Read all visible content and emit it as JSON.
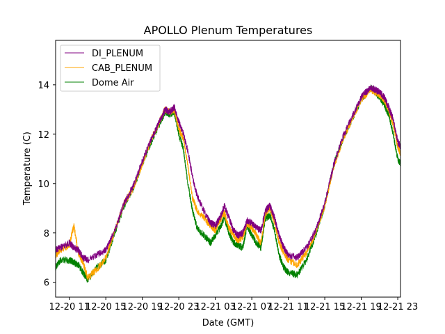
{
  "chart_data": {
    "type": "line",
    "title": "APOLLO Plenum Temperatures",
    "xlabel": "Date (GMT)",
    "ylabel": "Temperature (C)",
    "x_unit": "hours since 12-20 11:00 GMT",
    "xlim": [
      -1.5,
      36.3
    ],
    "ylim": [
      5.4,
      15.8
    ],
    "x_ticks": [
      {
        "value": 0,
        "label": "12-20 11"
      },
      {
        "value": 4,
        "label": "12-20 15"
      },
      {
        "value": 8,
        "label": "12-20 19"
      },
      {
        "value": 12,
        "label": "12-20 23"
      },
      {
        "value": 16,
        "label": "12-21 03"
      },
      {
        "value": 20,
        "label": "12-21 07"
      },
      {
        "value": 24,
        "label": "12-21 11"
      },
      {
        "value": 28,
        "label": "12-21 15"
      },
      {
        "value": 32,
        "label": "12-21 19"
      },
      {
        "value": 36,
        "label": "12-21 23"
      }
    ],
    "y_ticks": [
      {
        "value": 6,
        "label": "6"
      },
      {
        "value": 8,
        "label": "8"
      },
      {
        "value": 10,
        "label": "10"
      },
      {
        "value": 12,
        "label": "12"
      },
      {
        "value": 14,
        "label": "14"
      }
    ],
    "legend": "top-left",
    "grid": false,
    "x": [
      -1.5,
      -1.0,
      0.0,
      0.5,
      1.0,
      1.5,
      2.0,
      3.0,
      4.0,
      5.0,
      6.0,
      7.0,
      8.0,
      9.0,
      10.0,
      10.5,
      11.0,
      11.5,
      12.0,
      12.5,
      13.0,
      13.5,
      14.0,
      15.0,
      15.5,
      16.0,
      16.5,
      17.0,
      17.5,
      18.0,
      18.5,
      19.0,
      19.5,
      20.0,
      20.5,
      21.0,
      21.5,
      22.0,
      22.5,
      23.0,
      23.5,
      24.0,
      25.0,
      26.0,
      27.0,
      28.0,
      29.0,
      30.0,
      31.0,
      32.0,
      33.0,
      33.5,
      34.0,
      34.5,
      35.0,
      35.5,
      36.0,
      36.3
    ],
    "series": [
      {
        "name": "DI_PLENUM",
        "color": "#800080",
        "values": [
          7.3,
          7.4,
          7.6,
          7.4,
          7.3,
          7.0,
          6.9,
          7.1,
          7.3,
          8.1,
          9.2,
          9.9,
          10.9,
          11.8,
          12.6,
          13.0,
          12.9,
          13.1,
          12.5,
          12.0,
          11.3,
          10.3,
          9.5,
          8.7,
          8.4,
          8.3,
          8.6,
          9.1,
          8.6,
          8.1,
          7.9,
          8.0,
          8.5,
          8.4,
          8.2,
          8.1,
          8.9,
          9.1,
          8.6,
          7.9,
          7.4,
          7.1,
          7.0,
          7.4,
          8.1,
          9.2,
          10.8,
          11.9,
          12.7,
          13.5,
          13.9,
          13.8,
          13.7,
          13.5,
          13.1,
          12.6,
          11.7,
          11.5
        ]
      },
      {
        "name": "CAB_PLENUM",
        "color": "#ffa500",
        "values": [
          7.1,
          7.3,
          7.5,
          8.3,
          7.2,
          6.8,
          6.2,
          6.5,
          7.0,
          8.1,
          9.2,
          9.8,
          10.8,
          11.8,
          12.6,
          13.0,
          12.9,
          13.0,
          12.2,
          11.8,
          10.7,
          9.4,
          8.9,
          8.5,
          8.3,
          8.1,
          8.5,
          8.8,
          8.2,
          7.9,
          7.7,
          7.8,
          8.4,
          8.2,
          7.9,
          7.6,
          8.8,
          9.0,
          8.4,
          7.6,
          7.2,
          6.9,
          6.7,
          7.2,
          8.0,
          9.1,
          10.7,
          11.8,
          12.6,
          13.4,
          13.8,
          13.7,
          13.6,
          13.4,
          13.0,
          12.4,
          11.5,
          11.2
        ]
      },
      {
        "name": "Dome Air",
        "color": "#008000",
        "values": [
          6.6,
          6.9,
          6.9,
          6.8,
          6.7,
          6.4,
          6.1,
          6.6,
          6.9,
          8.0,
          9.1,
          9.8,
          10.8,
          11.7,
          12.5,
          12.9,
          12.8,
          12.9,
          12.0,
          11.4,
          10.0,
          8.9,
          8.2,
          7.8,
          7.6,
          7.9,
          8.2,
          8.6,
          8.0,
          7.6,
          7.5,
          7.4,
          8.3,
          7.9,
          7.6,
          7.4,
          8.6,
          8.7,
          8.1,
          7.1,
          6.6,
          6.4,
          6.3,
          6.9,
          7.9,
          9.1,
          10.8,
          11.8,
          12.6,
          13.4,
          13.9,
          13.7,
          13.5,
          13.2,
          12.8,
          12.0,
          11.0,
          10.8
        ]
      }
    ]
  }
}
